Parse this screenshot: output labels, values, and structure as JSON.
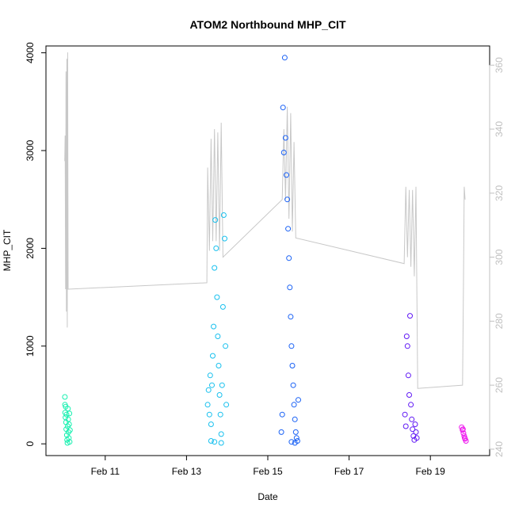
{
  "chart_data": {
    "type": "scatter",
    "title": "ATOM2 Northbound MHP_CIT",
    "xlabel": "Date",
    "ylabel": "MHP_CIT",
    "xlim": [
      "2011-02-09T13:00",
      "2011-02-20T11:00"
    ],
    "ylim": [
      -120,
      4070
    ],
    "y2lim": [
      238,
      366
    ],
    "x_ticks": [
      {
        "date": "2011-02-11T00:00",
        "label": "Feb 11"
      },
      {
        "date": "2011-02-13T00:00",
        "label": "Feb 13"
      },
      {
        "date": "2011-02-15T00:00",
        "label": "Feb 15"
      },
      {
        "date": "2011-02-17T00:00",
        "label": "Feb 17"
      },
      {
        "date": "2011-02-19T00:00",
        "label": "Feb 19"
      }
    ],
    "y_ticks": [
      0,
      1000,
      2000,
      3000,
      4000
    ],
    "y2_ticks": [
      240,
      260,
      280,
      300,
      320,
      340,
      360
    ],
    "grid": false,
    "legend": "none",
    "series": [
      {
        "color": "#18f0b0",
        "points": [
          [
            "2011-02-10T00:10",
            480
          ],
          [
            "2011-02-10T00:15",
            400
          ],
          [
            "2011-02-10T00:20",
            320
          ],
          [
            "2011-02-10T00:30",
            270
          ],
          [
            "2011-02-10T00:40",
            380
          ],
          [
            "2011-02-10T00:50",
            220
          ],
          [
            "2011-02-10T01:00",
            150
          ],
          [
            "2011-02-10T01:10",
            300
          ],
          [
            "2011-02-10T01:20",
            90
          ],
          [
            "2011-02-10T01:30",
            40
          ],
          [
            "2011-02-10T01:40",
            10
          ],
          [
            "2011-02-10T01:50",
            180
          ],
          [
            "2011-02-10T02:00",
            360
          ],
          [
            "2011-02-10T02:10",
            250
          ],
          [
            "2011-02-10T02:20",
            120
          ],
          [
            "2011-02-10T02:30",
            60
          ],
          [
            "2011-02-10T02:40",
            200
          ],
          [
            "2011-02-10T02:50",
            310
          ],
          [
            "2011-02-10T03:00",
            20
          ],
          [
            "2011-02-10T03:10",
            140
          ]
        ]
      },
      {
        "color": "#18c0ee",
        "points": [
          [
            "2011-02-13T12:30",
            400
          ],
          [
            "2011-02-13T13:00",
            550
          ],
          [
            "2011-02-13T13:30",
            300
          ],
          [
            "2011-02-13T14:00",
            700
          ],
          [
            "2011-02-13T14:30",
            200
          ],
          [
            "2011-02-13T15:00",
            600
          ],
          [
            "2011-02-13T15:30",
            900
          ],
          [
            "2011-02-13T16:00",
            1200
          ],
          [
            "2011-02-13T16:30",
            1800
          ],
          [
            "2011-02-13T17:00",
            2290
          ],
          [
            "2011-02-13T17:30",
            2000
          ],
          [
            "2011-02-13T18:00",
            1500
          ],
          [
            "2011-02-13T18:30",
            1100
          ],
          [
            "2011-02-13T19:00",
            800
          ],
          [
            "2011-02-13T19:30",
            500
          ],
          [
            "2011-02-13T20:00",
            300
          ],
          [
            "2011-02-13T20:30",
            100
          ],
          [
            "2011-02-13T21:00",
            600
          ],
          [
            "2011-02-13T21:30",
            1400
          ],
          [
            "2011-02-13T22:00",
            2340
          ],
          [
            "2011-02-13T22:30",
            2100
          ],
          [
            "2011-02-13T23:00",
            1000
          ],
          [
            "2011-02-13T23:30",
            400
          ],
          [
            "2011-02-13T14:30",
            30
          ],
          [
            "2011-02-13T16:30",
            20
          ],
          [
            "2011-02-13T20:30",
            10
          ]
        ]
      },
      {
        "color": "#1860f5",
        "points": [
          [
            "2011-02-15T09:00",
            3440
          ],
          [
            "2011-02-15T10:00",
            3950
          ],
          [
            "2011-02-15T10:30",
            3130
          ],
          [
            "2011-02-15T09:30",
            2980
          ],
          [
            "2011-02-15T11:00",
            2750
          ],
          [
            "2011-02-15T11:30",
            2500
          ],
          [
            "2011-02-15T12:00",
            2200
          ],
          [
            "2011-02-15T12:30",
            1900
          ],
          [
            "2011-02-15T13:00",
            1600
          ],
          [
            "2011-02-15T13:30",
            1300
          ],
          [
            "2011-02-15T14:00",
            1000
          ],
          [
            "2011-02-15T14:30",
            800
          ],
          [
            "2011-02-15T15:00",
            600
          ],
          [
            "2011-02-15T15:30",
            400
          ],
          [
            "2011-02-15T16:00",
            250
          ],
          [
            "2011-02-15T16:30",
            120
          ],
          [
            "2011-02-15T17:00",
            60
          ],
          [
            "2011-02-15T17:30",
            30
          ],
          [
            "2011-02-15T18:00",
            450
          ],
          [
            "2011-02-15T08:30",
            300
          ],
          [
            "2011-02-15T08:00",
            120
          ],
          [
            "2011-02-15T14:00",
            20
          ],
          [
            "2011-02-15T16:00",
            10
          ]
        ]
      },
      {
        "color": "#6018f5",
        "points": [
          [
            "2011-02-18T09:00",
            300
          ],
          [
            "2011-02-18T09:30",
            180
          ],
          [
            "2011-02-18T10:00",
            1100
          ],
          [
            "2011-02-18T10:30",
            1000
          ],
          [
            "2011-02-18T11:00",
            700
          ],
          [
            "2011-02-18T11:30",
            500
          ],
          [
            "2011-02-18T12:00",
            1310
          ],
          [
            "2011-02-18T12:30",
            400
          ],
          [
            "2011-02-18T13:00",
            250
          ],
          [
            "2011-02-18T13:30",
            150
          ],
          [
            "2011-02-18T14:00",
            80
          ],
          [
            "2011-02-18T14:30",
            40
          ],
          [
            "2011-02-18T15:00",
            200
          ],
          [
            "2011-02-18T15:30",
            120
          ],
          [
            "2011-02-18T16:00",
            60
          ]
        ]
      },
      {
        "color": "#ee18ee",
        "points": [
          [
            "2011-02-19T18:30",
            170
          ],
          [
            "2011-02-19T19:00",
            140
          ],
          [
            "2011-02-19T19:30",
            110
          ],
          [
            "2011-02-19T20:00",
            80
          ],
          [
            "2011-02-19T20:30",
            50
          ],
          [
            "2011-02-19T21:00",
            30
          ],
          [
            "2011-02-19T19:15",
            150
          ],
          [
            "2011-02-19T20:15",
            60
          ]
        ]
      }
    ],
    "secondary_line": {
      "color": "#c8c8c8",
      "axis": "right",
      "points": [
        [
          "2011-02-10T00:05",
          330
        ],
        [
          "2011-02-10T00:20",
          338
        ],
        [
          "2011-02-10T00:35",
          290
        ],
        [
          "2011-02-10T00:50",
          358
        ],
        [
          "2011-02-10T01:05",
          283
        ],
        [
          "2011-02-10T01:20",
          362
        ],
        [
          "2011-02-10T01:35",
          278
        ],
        [
          "2011-02-10T01:50",
          364
        ],
        [
          "2011-02-10T02:05",
          290
        ],
        [
          "2011-02-13T12:00",
          292
        ],
        [
          "2011-02-13T12:30",
          328
        ],
        [
          "2011-02-13T13:30",
          302
        ],
        [
          "2011-02-13T14:30",
          337
        ],
        [
          "2011-02-13T15:30",
          305
        ],
        [
          "2011-02-13T16:30",
          340
        ],
        [
          "2011-02-13T17:30",
          305
        ],
        [
          "2011-02-13T18:30",
          339
        ],
        [
          "2011-02-13T19:30",
          302
        ],
        [
          "2011-02-13T20:30",
          342
        ],
        [
          "2011-02-13T21:30",
          300
        ],
        [
          "2011-02-15T08:30",
          318
        ],
        [
          "2011-02-15T09:30",
          340
        ],
        [
          "2011-02-15T10:30",
          318
        ],
        [
          "2011-02-15T11:30",
          347
        ],
        [
          "2011-02-15T12:30",
          312
        ],
        [
          "2011-02-15T13:30",
          345
        ],
        [
          "2011-02-15T14:30",
          308
        ],
        [
          "2011-02-15T15:30",
          336
        ],
        [
          "2011-02-15T16:30",
          306
        ],
        [
          "2011-02-18T08:30",
          298
        ],
        [
          "2011-02-18T09:30",
          322
        ],
        [
          "2011-02-18T10:30",
          300
        ],
        [
          "2011-02-18T11:30",
          321
        ],
        [
          "2011-02-18T12:30",
          297
        ],
        [
          "2011-02-18T13:30",
          321
        ],
        [
          "2011-02-18T14:30",
          294
        ],
        [
          "2011-02-18T15:30",
          322
        ],
        [
          "2011-02-18T16:30",
          259
        ],
        [
          "2011-02-19T19:00",
          260
        ],
        [
          "2011-02-19T19:30",
          290
        ],
        [
          "2011-02-19T20:00",
          322
        ],
        [
          "2011-02-19T20:30",
          318
        ]
      ]
    }
  }
}
